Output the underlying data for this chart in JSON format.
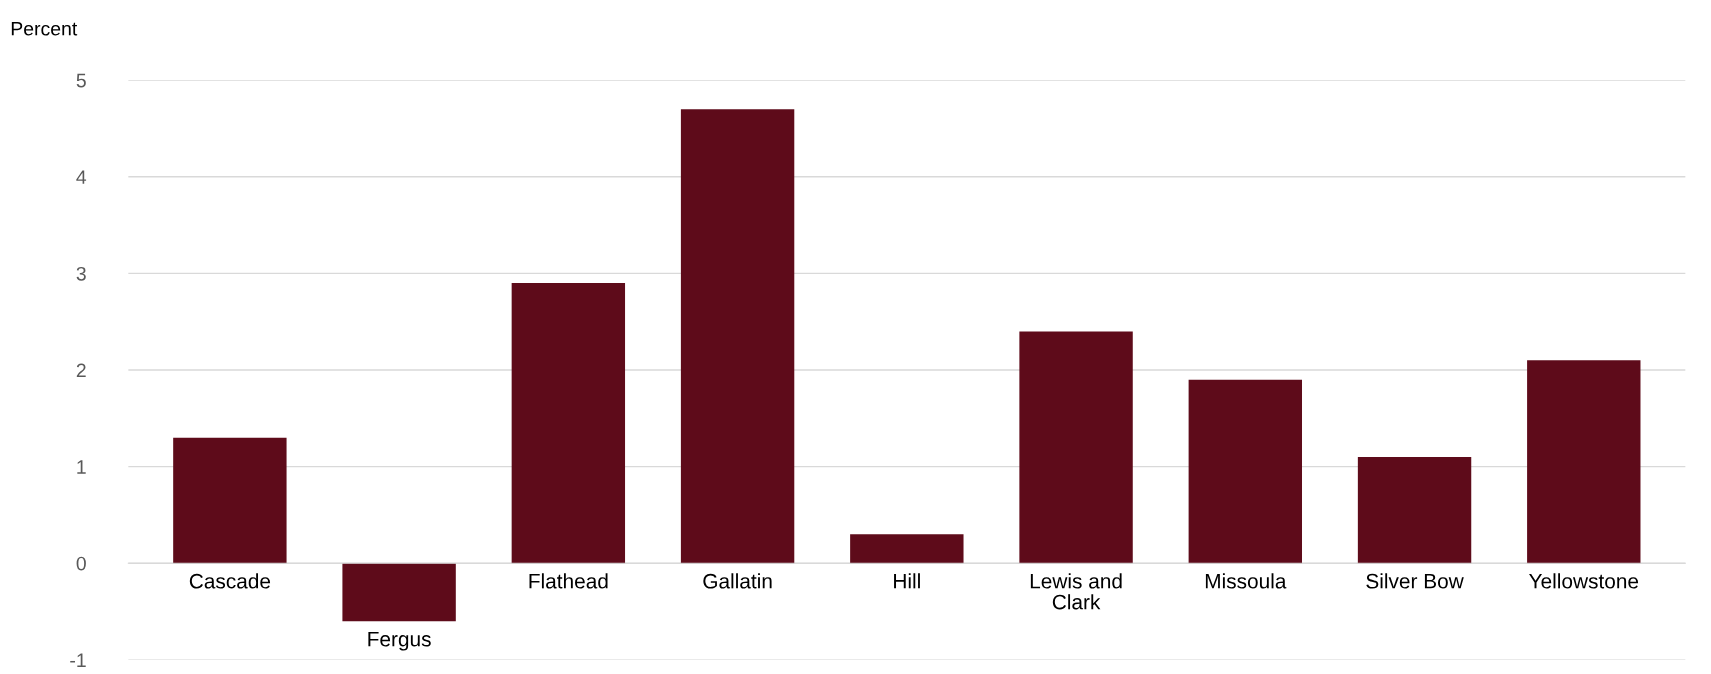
{
  "chart_data": {
    "type": "bar",
    "ylabel": "Percent",
    "categories": [
      "Cascade",
      "Fergus",
      "Flathead",
      "Gallatin",
      "Hill",
      "Lewis and Clark",
      "Missoula",
      "Silver Bow",
      "Yellowstone"
    ],
    "values": [
      1.3,
      -0.6,
      2.9,
      4.7,
      0.3,
      2.4,
      1.9,
      1.1,
      2.1
    ],
    "color": "#5e0b1a",
    "ylim": [
      -1,
      5
    ],
    "yticks": [
      -1,
      0,
      1,
      2,
      3,
      4,
      5
    ],
    "grid": "y",
    "legend": false
  }
}
